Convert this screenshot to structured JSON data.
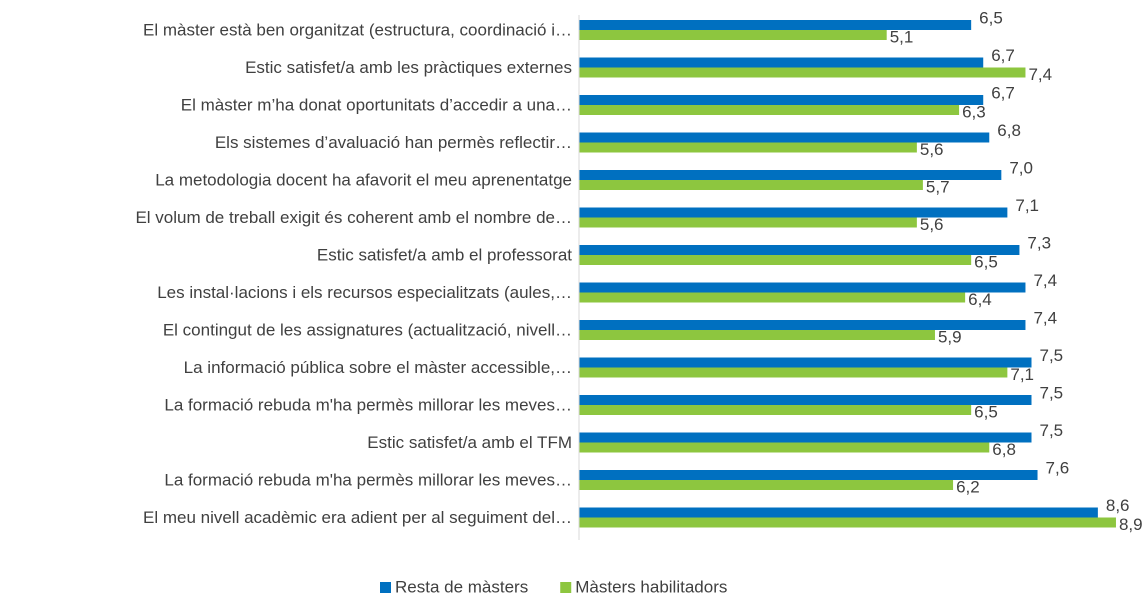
{
  "chart_data": {
    "type": "bar",
    "orientation": "horizontal",
    "categories": [
      "El màster està ben organitzat (estructura, coordinació i…",
      "Estic satisfet/a amb les pràctiques externes ",
      "El màster m’ha donat oportunitats d’accedir a una…",
      "Els sistemes d’avaluació han permès reflectir…",
      "La metodologia docent ha afavorit el meu aprenentatge ",
      "El volum de treball exigit és coherent amb el nombre de…",
      "Estic satisfet/a amb el professorat ",
      "Les instal·lacions i els recursos especialitzats (aules,…",
      "El contingut de les assignatures (actualització, nivell…",
      "La informació pública sobre el màster accessible,…",
      "La formació rebuda m'ha permès millorar les meves…",
      "Estic satisfet/a amb el TFM ",
      "La formació rebuda m'ha permès millorar les meves…",
      "El meu nivell acadèmic era adient per al seguiment del…"
    ],
    "series": [
      {
        "name": "Resta de màsters",
        "color": "#0070c0",
        "values": [
          6.5,
          6.7,
          6.7,
          6.8,
          7.0,
          7.1,
          7.3,
          7.4,
          7.4,
          7.5,
          7.5,
          7.5,
          7.6,
          8.6
        ],
        "value_labels": [
          "6,5",
          "6,7",
          "6,7",
          "6,8",
          "7,0",
          "7,1",
          "7,3",
          "7,4",
          "7,4",
          "7,5",
          "7,5",
          "7,5",
          "7,6",
          "8,6"
        ]
      },
      {
        "name": "Màsters habilitadors",
        "color": "#8dc63f",
        "values": [
          5.1,
          7.4,
          6.3,
          5.6,
          5.7,
          5.6,
          6.5,
          6.4,
          5.9,
          7.1,
          6.5,
          6.8,
          6.2,
          8.9
        ],
        "value_labels": [
          "5,1",
          "7,4",
          "6,3",
          "5,6",
          "5,7",
          "5,6",
          "6,5",
          "6,4",
          "5,9",
          "7,1",
          "6,5",
          "6,8",
          "6,2",
          "8,9"
        ]
      }
    ],
    "xlim": [
      0,
      9
    ],
    "legend": "bottom"
  }
}
